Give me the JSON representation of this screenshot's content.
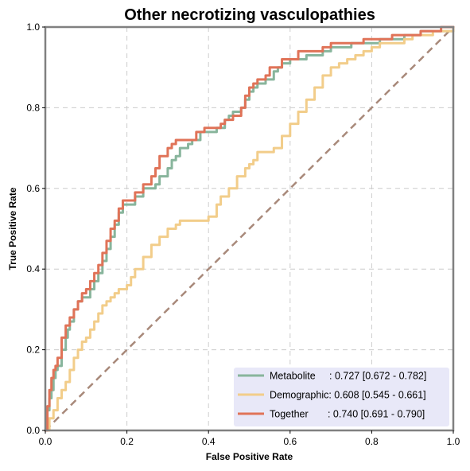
{
  "chart_data": {
    "type": "line",
    "title": "Other necrotizing vasculopathies",
    "xlabel": "False Positive Rate",
    "ylabel": "True Positive Rate",
    "xlim": [
      0,
      1
    ],
    "ylim": [
      0,
      1
    ],
    "xticks": [
      "0.0",
      "0.2",
      "0.4",
      "0.6",
      "0.8",
      "1.0"
    ],
    "yticks": [
      "0.0",
      "0.2",
      "0.4",
      "0.6",
      "0.8",
      "1.0"
    ],
    "grid": true,
    "legend_position": "bottom-right",
    "series": [
      {
        "name": "Metabolite",
        "legend_label": "Metabolite     : 0.727 [0.672 - 0.782]",
        "color": "#88b59c",
        "x": [
          0,
          0.005,
          0.01,
          0.015,
          0.02,
          0.025,
          0.03,
          0.04,
          0.05,
          0.055,
          0.06,
          0.07,
          0.08,
          0.09,
          0.1,
          0.11,
          0.12,
          0.13,
          0.14,
          0.15,
          0.16,
          0.17,
          0.18,
          0.19,
          0.2,
          0.22,
          0.24,
          0.26,
          0.27,
          0.28,
          0.3,
          0.31,
          0.32,
          0.33,
          0.35,
          0.36,
          0.38,
          0.4,
          0.42,
          0.44,
          0.45,
          0.46,
          0.48,
          0.49,
          0.5,
          0.51,
          0.52,
          0.54,
          0.56,
          0.57,
          0.58,
          0.6,
          0.62,
          0.64,
          0.66,
          0.68,
          0.7,
          0.72,
          0.75,
          0.78,
          0.8,
          0.82,
          0.85,
          0.88,
          0.9,
          0.92,
          0.95,
          0.97,
          1.0
        ],
        "y": [
          0,
          0.05,
          0.08,
          0.1,
          0.13,
          0.15,
          0.16,
          0.2,
          0.23,
          0.25,
          0.27,
          0.3,
          0.32,
          0.33,
          0.33,
          0.35,
          0.37,
          0.39,
          0.42,
          0.45,
          0.48,
          0.51,
          0.54,
          0.56,
          0.56,
          0.58,
          0.6,
          0.6,
          0.61,
          0.63,
          0.65,
          0.67,
          0.68,
          0.7,
          0.71,
          0.72,
          0.74,
          0.74,
          0.75,
          0.77,
          0.78,
          0.79,
          0.8,
          0.82,
          0.84,
          0.85,
          0.86,
          0.87,
          0.89,
          0.9,
          0.91,
          0.92,
          0.92,
          0.93,
          0.93,
          0.94,
          0.95,
          0.95,
          0.96,
          0.96,
          0.96,
          0.97,
          0.97,
          0.98,
          0.98,
          0.99,
          0.99,
          0.99,
          1.0
        ]
      },
      {
        "name": "Demographic",
        "legend_label": "Demographic: 0.608 [0.545 - 0.661]",
        "color": "#f2cd8a",
        "x": [
          0,
          0.01,
          0.02,
          0.03,
          0.04,
          0.05,
          0.06,
          0.07,
          0.08,
          0.09,
          0.1,
          0.11,
          0.12,
          0.13,
          0.14,
          0.15,
          0.16,
          0.17,
          0.18,
          0.2,
          0.21,
          0.22,
          0.24,
          0.26,
          0.28,
          0.3,
          0.32,
          0.33,
          0.35,
          0.38,
          0.4,
          0.42,
          0.43,
          0.45,
          0.47,
          0.49,
          0.5,
          0.51,
          0.52,
          0.54,
          0.55,
          0.56,
          0.58,
          0.6,
          0.62,
          0.64,
          0.66,
          0.68,
          0.7,
          0.72,
          0.74,
          0.76,
          0.78,
          0.8,
          0.82,
          0.85,
          0.88,
          0.9,
          0.92,
          0.95,
          0.97,
          1.0
        ],
        "y": [
          0,
          0.03,
          0.05,
          0.08,
          0.1,
          0.12,
          0.15,
          0.18,
          0.2,
          0.22,
          0.23,
          0.25,
          0.27,
          0.29,
          0.31,
          0.32,
          0.33,
          0.34,
          0.35,
          0.36,
          0.38,
          0.4,
          0.43,
          0.46,
          0.48,
          0.5,
          0.51,
          0.52,
          0.52,
          0.52,
          0.53,
          0.56,
          0.58,
          0.6,
          0.63,
          0.65,
          0.66,
          0.67,
          0.69,
          0.69,
          0.69,
          0.7,
          0.73,
          0.76,
          0.79,
          0.82,
          0.85,
          0.88,
          0.9,
          0.91,
          0.92,
          0.93,
          0.94,
          0.95,
          0.96,
          0.96,
          0.97,
          0.98,
          0.98,
          0.99,
          0.99,
          1.0
        ]
      },
      {
        "name": "Together",
        "legend_label": "Together       : 0.740 [0.691 - 0.790]",
        "color": "#e07358",
        "x": [
          0,
          0.005,
          0.01,
          0.015,
          0.02,
          0.025,
          0.03,
          0.04,
          0.05,
          0.06,
          0.07,
          0.08,
          0.09,
          0.1,
          0.11,
          0.12,
          0.13,
          0.14,
          0.15,
          0.16,
          0.17,
          0.18,
          0.19,
          0.2,
          0.22,
          0.24,
          0.26,
          0.27,
          0.28,
          0.3,
          0.31,
          0.32,
          0.33,
          0.35,
          0.37,
          0.39,
          0.41,
          0.43,
          0.44,
          0.46,
          0.48,
          0.49,
          0.5,
          0.51,
          0.52,
          0.54,
          0.55,
          0.56,
          0.58,
          0.6,
          0.62,
          0.64,
          0.66,
          0.68,
          0.7,
          0.72,
          0.75,
          0.78,
          0.8,
          0.82,
          0.85,
          0.88,
          0.9,
          0.92,
          0.95,
          0.97,
          1.0
        ],
        "y": [
          0,
          0.06,
          0.1,
          0.13,
          0.15,
          0.16,
          0.18,
          0.23,
          0.26,
          0.28,
          0.3,
          0.32,
          0.34,
          0.35,
          0.37,
          0.39,
          0.41,
          0.44,
          0.47,
          0.5,
          0.52,
          0.55,
          0.57,
          0.57,
          0.59,
          0.61,
          0.63,
          0.65,
          0.68,
          0.7,
          0.71,
          0.72,
          0.72,
          0.72,
          0.74,
          0.75,
          0.75,
          0.76,
          0.77,
          0.78,
          0.8,
          0.83,
          0.85,
          0.86,
          0.87,
          0.88,
          0.9,
          0.9,
          0.92,
          0.92,
          0.94,
          0.94,
          0.94,
          0.95,
          0.96,
          0.96,
          0.96,
          0.97,
          0.97,
          0.97,
          0.98,
          0.98,
          0.98,
          0.99,
          0.99,
          1.0,
          1.0
        ]
      }
    ],
    "reference_line": {
      "x": [
        0,
        1
      ],
      "y": [
        0,
        1
      ],
      "color": "#a8897a",
      "style": "dashed"
    }
  },
  "colors": {
    "axis_frame": "#808080",
    "grid": "#cccccc",
    "legend_bg": "#e8e8f8"
  }
}
